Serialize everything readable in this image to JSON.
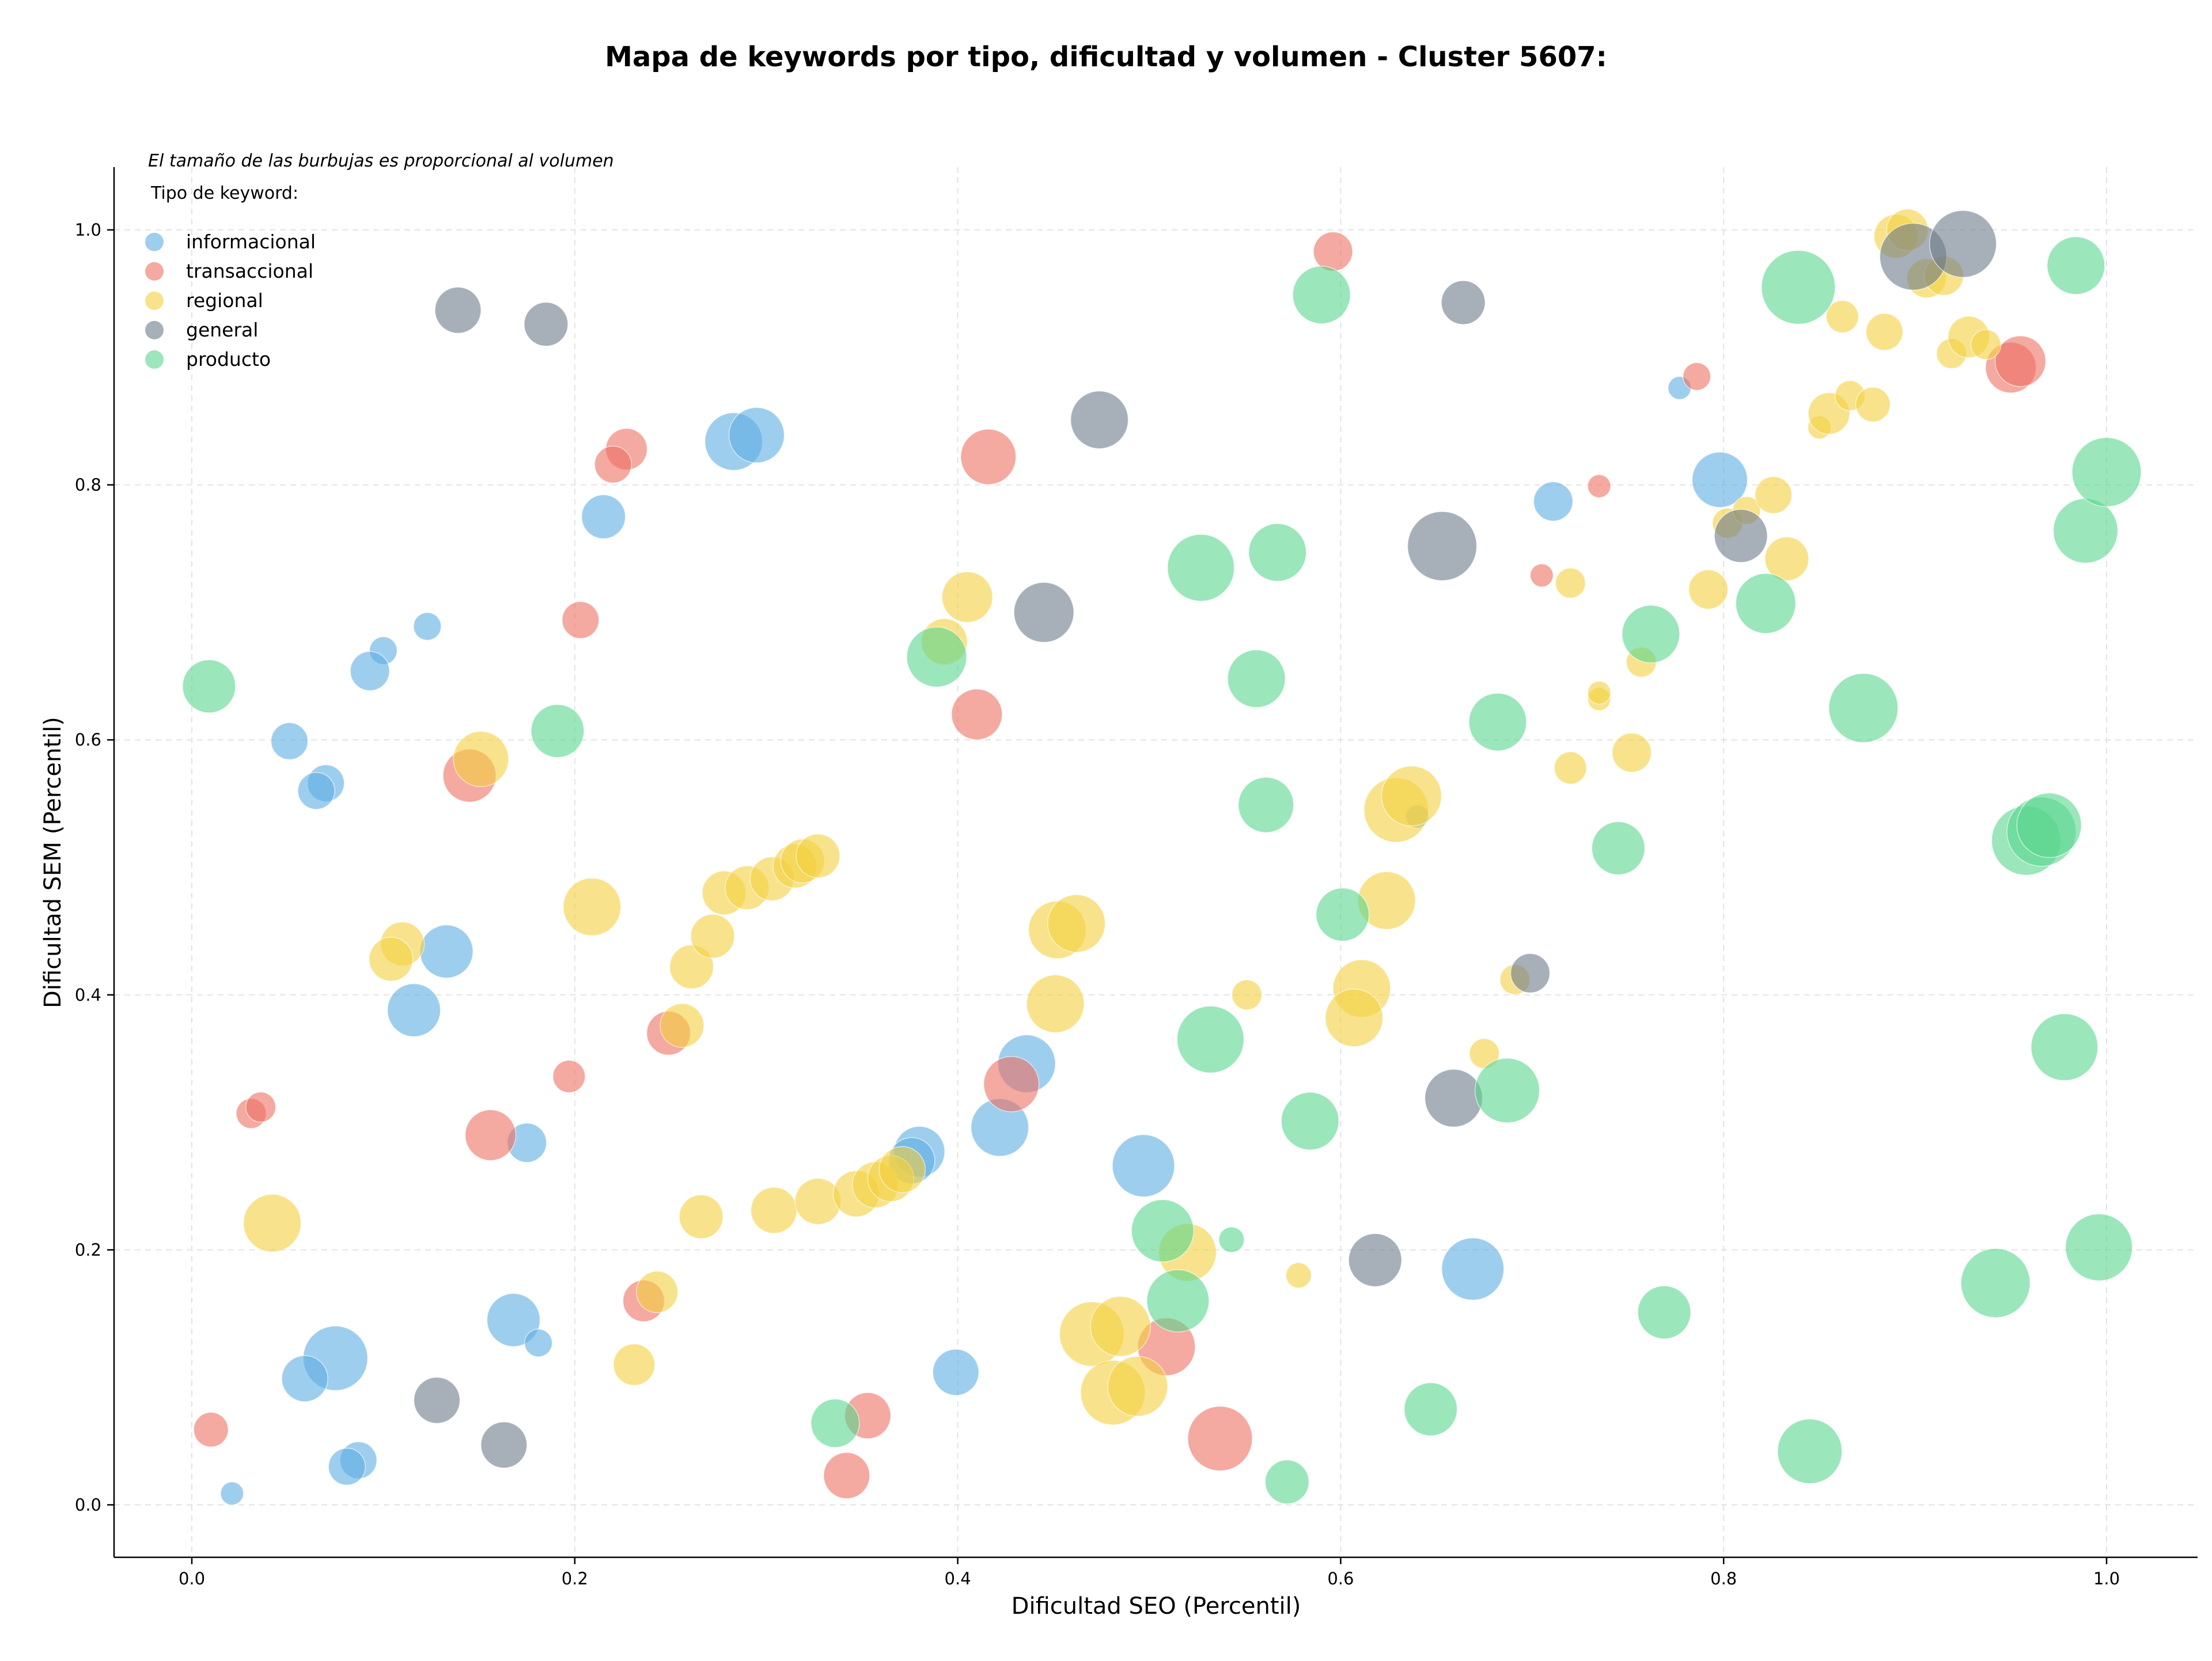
{
  "chart_data": {
    "type": "scatter",
    "title": "Mapa de keywords por tipo, dificultad y volumen - Cluster 5607:",
    "xlabel": "Dificultad SEO (Percentil)",
    "ylabel": "Dificultad SEM (Percentil)",
    "xlim": [
      -0.04,
      1.05
    ],
    "ylim": [
      -0.04,
      1.05
    ],
    "xticks": [
      0.0,
      0.2,
      0.4,
      0.6,
      0.8,
      1.0
    ],
    "xtick_labels": [
      "0.0",
      "0.2",
      "0.4",
      "0.6",
      "0.8",
      "1.0"
    ],
    "yticks": [
      0.0,
      0.2,
      0.4,
      0.6,
      0.8,
      1.0
    ],
    "ytick_labels": [
      "0.0",
      "0.2",
      "0.4",
      "0.6",
      "0.8",
      "1.0"
    ],
    "grid": true,
    "legend_position": "top-left",
    "size_note": "El tamaño de las burbujas es proporcional al volumen",
    "legend_title": "Tipo de keyword:",
    "series": [
      {
        "name": "informacional",
        "color": "#5DADE2",
        "points": [
          [
            0.283,
            0.834,
            50
          ],
          [
            0.295,
            0.839,
            48
          ],
          [
            0.215,
            0.775,
            38
          ],
          [
            0.123,
            0.689,
            24
          ],
          [
            0.1,
            0.67,
            24
          ],
          [
            0.093,
            0.654,
            34
          ],
          [
            0.051,
            0.599,
            32
          ],
          [
            0.07,
            0.566,
            32
          ],
          [
            0.065,
            0.56,
            32
          ],
          [
            0.133,
            0.434,
            46
          ],
          [
            0.116,
            0.388,
            46
          ],
          [
            0.175,
            0.284,
            34
          ],
          [
            0.168,
            0.145,
            46
          ],
          [
            0.181,
            0.127,
            24
          ],
          [
            0.075,
            0.115,
            56
          ],
          [
            0.059,
            0.099,
            40
          ],
          [
            0.087,
            0.035,
            32
          ],
          [
            0.081,
            0.03,
            32
          ],
          [
            0.021,
            0.009,
            20
          ],
          [
            0.399,
            0.104,
            40
          ],
          [
            0.38,
            0.277,
            44
          ],
          [
            0.376,
            0.27,
            40
          ],
          [
            0.422,
            0.296,
            50
          ],
          [
            0.436,
            0.346,
            50
          ],
          [
            0.497,
            0.266,
            54
          ],
          [
            0.669,
            0.185,
            54
          ],
          [
            0.711,
            0.787,
            34
          ],
          [
            0.777,
            0.876,
            20
          ],
          [
            0.798,
            0.804,
            48
          ],
          [
            0.64,
            0.54,
            20
          ]
        ]
      },
      {
        "name": "transaccional",
        "color": "#EC7063",
        "points": [
          [
            0.596,
            0.983,
            34
          ],
          [
            0.227,
            0.828,
            36
          ],
          [
            0.22,
            0.816,
            32
          ],
          [
            0.416,
            0.822,
            48
          ],
          [
            0.203,
            0.694,
            32
          ],
          [
            0.41,
            0.62,
            44
          ],
          [
            0.145,
            0.572,
            46
          ],
          [
            0.249,
            0.37,
            38
          ],
          [
            0.197,
            0.336,
            28
          ],
          [
            0.156,
            0.29,
            44
          ],
          [
            0.031,
            0.307,
            26
          ],
          [
            0.036,
            0.312,
            26
          ],
          [
            0.01,
            0.059,
            30
          ],
          [
            0.236,
            0.16,
            36
          ],
          [
            0.353,
            0.07,
            40
          ],
          [
            0.342,
            0.023,
            40
          ],
          [
            0.428,
            0.33,
            48
          ],
          [
            0.509,
            0.124,
            50
          ],
          [
            0.537,
            0.052,
            56
          ],
          [
            0.705,
            0.729,
            20
          ],
          [
            0.735,
            0.799,
            20
          ],
          [
            0.786,
            0.885,
            24
          ],
          [
            0.95,
            0.892,
            44
          ],
          [
            0.955,
            0.897,
            44
          ]
        ]
      },
      {
        "name": "regional",
        "color": "#F4D03F",
        "points": [
          [
            0.151,
            0.585,
            48
          ],
          [
            0.209,
            0.469,
            50
          ],
          [
            0.11,
            0.44,
            38
          ],
          [
            0.104,
            0.428,
            38
          ],
          [
            0.042,
            0.221,
            50
          ],
          [
            0.231,
            0.11,
            36
          ],
          [
            0.243,
            0.167,
            36
          ],
          [
            0.256,
            0.376,
            38
          ],
          [
            0.261,
            0.422,
            38
          ],
          [
            0.272,
            0.446,
            38
          ],
          [
            0.278,
            0.48,
            38
          ],
          [
            0.29,
            0.484,
            38
          ],
          [
            0.303,
            0.491,
            38
          ],
          [
            0.315,
            0.501,
            38
          ],
          [
            0.319,
            0.505,
            38
          ],
          [
            0.327,
            0.509,
            38
          ],
          [
            0.266,
            0.226,
            38
          ],
          [
            0.304,
            0.231,
            40
          ],
          [
            0.327,
            0.238,
            40
          ],
          [
            0.347,
            0.244,
            40
          ],
          [
            0.357,
            0.251,
            40
          ],
          [
            0.365,
            0.256,
            40
          ],
          [
            0.371,
            0.263,
            40
          ],
          [
            0.393,
            0.677,
            40
          ],
          [
            0.405,
            0.712,
            44
          ],
          [
            0.452,
            0.451,
            50
          ],
          [
            0.462,
            0.456,
            50
          ],
          [
            0.451,
            0.393,
            50
          ],
          [
            0.47,
            0.134,
            56
          ],
          [
            0.485,
            0.14,
            52
          ],
          [
            0.481,
            0.088,
            56
          ],
          [
            0.494,
            0.093,
            52
          ],
          [
            0.52,
            0.198,
            50
          ],
          [
            0.551,
            0.4,
            26
          ],
          [
            0.578,
            0.18,
            22
          ],
          [
            0.611,
            0.405,
            50
          ],
          [
            0.607,
            0.382,
            50
          ],
          [
            0.624,
            0.474,
            50
          ],
          [
            0.629,
            0.545,
            56
          ],
          [
            0.637,
            0.556,
            52
          ],
          [
            0.675,
            0.354,
            26
          ],
          [
            0.691,
            0.412,
            26
          ],
          [
            0.72,
            0.578,
            28
          ],
          [
            0.72,
            0.723,
            26
          ],
          [
            0.735,
            0.632,
            20
          ],
          [
            0.735,
            0.637,
            20
          ],
          [
            0.752,
            0.59,
            34
          ],
          [
            0.757,
            0.661,
            26
          ],
          [
            0.792,
            0.718,
            34
          ],
          [
            0.802,
            0.77,
            26
          ],
          [
            0.812,
            0.78,
            24
          ],
          [
            0.826,
            0.792,
            32
          ],
          [
            0.833,
            0.742,
            38
          ],
          [
            0.85,
            0.845,
            20
          ],
          [
            0.855,
            0.856,
            36
          ],
          [
            0.862,
            0.932,
            28
          ],
          [
            0.866,
            0.87,
            26
          ],
          [
            0.878,
            0.863,
            30
          ],
          [
            0.884,
            0.92,
            32
          ],
          [
            0.89,
            0.995,
            38
          ],
          [
            0.896,
            1.0,
            36
          ],
          [
            0.906,
            0.962,
            34
          ],
          [
            0.915,
            0.964,
            34
          ],
          [
            0.919,
            0.903,
            26
          ],
          [
            0.928,
            0.916,
            36
          ],
          [
            0.937,
            0.91,
            26
          ]
        ]
      },
      {
        "name": "general",
        "color": "#6C7A89",
        "points": [
          [
            0.139,
            0.937,
            40
          ],
          [
            0.185,
            0.926,
            38
          ],
          [
            0.474,
            0.851,
            50
          ],
          [
            0.445,
            0.7,
            52
          ],
          [
            0.653,
            0.752,
            60
          ],
          [
            0.664,
            0.943,
            38
          ],
          [
            0.809,
            0.76,
            46
          ],
          [
            0.899,
            0.979,
            58
          ],
          [
            0.925,
            0.989,
            58
          ],
          [
            0.699,
            0.417,
            34
          ],
          [
            0.659,
            0.319,
            50
          ],
          [
            0.618,
            0.192,
            46
          ],
          [
            0.128,
            0.082,
            40
          ],
          [
            0.163,
            0.047,
            40
          ]
        ]
      },
      {
        "name": "producto",
        "color": "#58D68D",
        "points": [
          [
            0.009,
            0.642,
            46
          ],
          [
            0.191,
            0.607,
            46
          ],
          [
            0.389,
            0.665,
            52
          ],
          [
            0.527,
            0.735,
            58
          ],
          [
            0.567,
            0.747,
            50
          ],
          [
            0.556,
            0.648,
            50
          ],
          [
            0.561,
            0.549,
            48
          ],
          [
            0.59,
            0.949,
            50
          ],
          [
            0.601,
            0.463,
            46
          ],
          [
            0.682,
            0.614,
            50
          ],
          [
            0.532,
            0.365,
            58
          ],
          [
            0.584,
            0.301,
            50
          ],
          [
            0.687,
            0.325,
            56
          ],
          [
            0.507,
            0.215,
            54
          ],
          [
            0.515,
            0.16,
            54
          ],
          [
            0.543,
            0.208,
            22
          ],
          [
            0.572,
            0.018,
            38
          ],
          [
            0.647,
            0.075,
            46
          ],
          [
            0.336,
            0.064,
            42
          ],
          [
            0.745,
            0.515,
            46
          ],
          [
            0.762,
            0.683,
            50
          ],
          [
            0.769,
            0.151,
            46
          ],
          [
            0.822,
            0.707,
            52
          ],
          [
            0.839,
            0.955,
            64
          ],
          [
            0.873,
            0.625,
            60
          ],
          [
            0.845,
            0.042,
            56
          ],
          [
            0.942,
            0.174,
            60
          ],
          [
            0.958,
            0.521,
            60
          ],
          [
            0.966,
            0.528,
            60
          ],
          [
            0.97,
            0.533,
            56
          ],
          [
            0.978,
            0.359,
            58
          ],
          [
            0.984,
            0.972,
            50
          ],
          [
            0.989,
            0.764,
            56
          ],
          [
            0.996,
            0.202,
            58
          ],
          [
            1.0,
            0.81,
            60
          ]
        ]
      }
    ]
  }
}
